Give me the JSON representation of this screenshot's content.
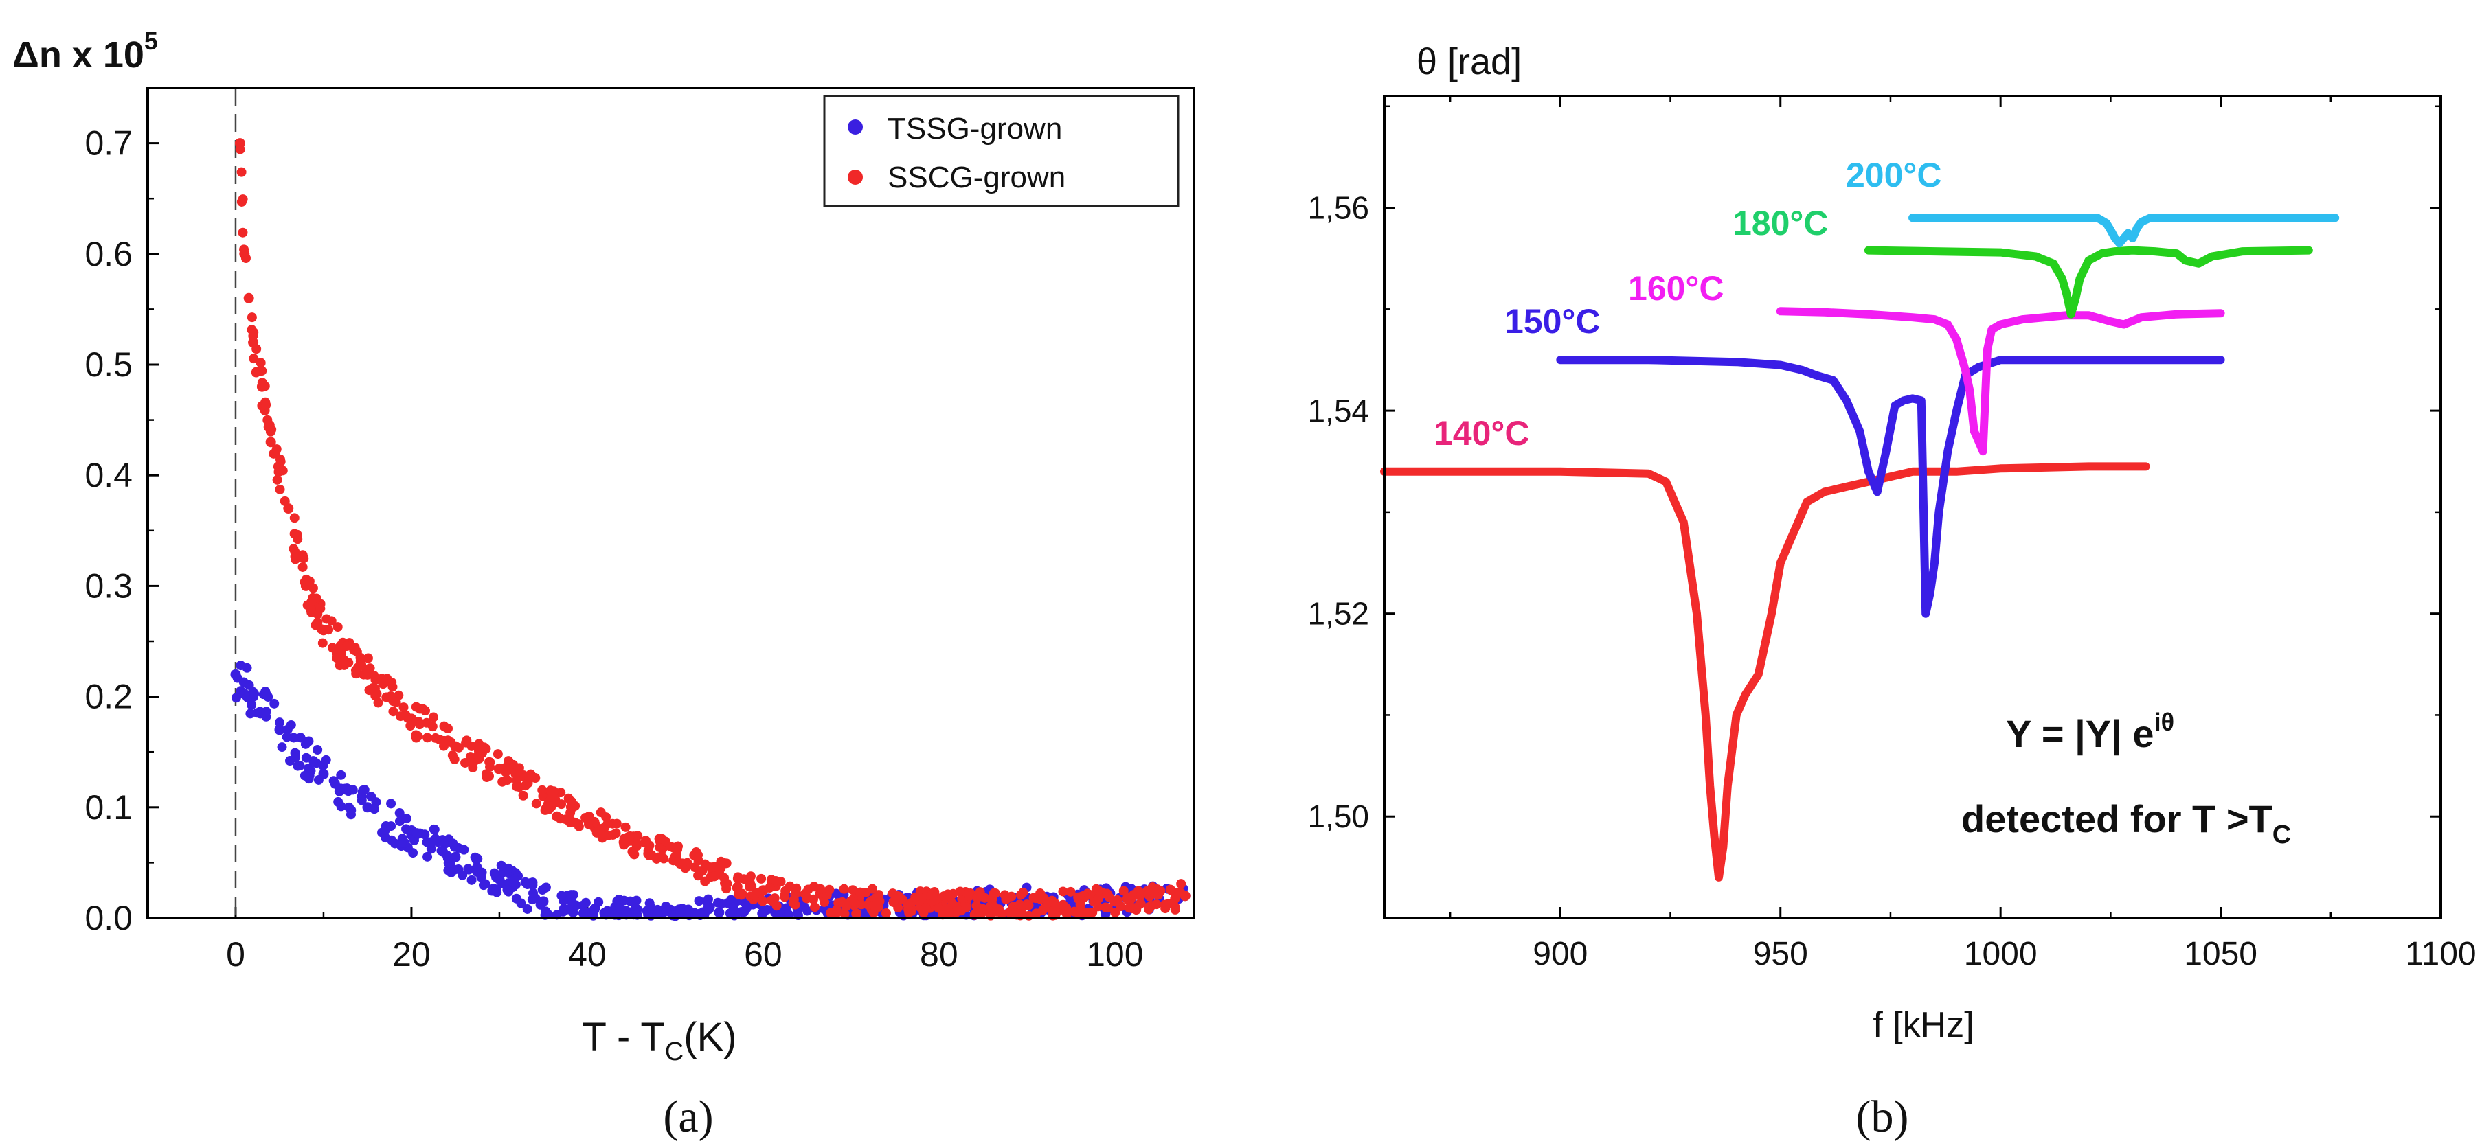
{
  "figure": {
    "panel_a_label": "(a)",
    "panel_b_label": "(b)"
  },
  "colors": {
    "tssg": "#3a1fe0",
    "sscg": "#f02828",
    "c140": "#f22b2b",
    "c150": "#3a1ee6",
    "c160": "#f21ef2",
    "c180": "#25d01c",
    "c200": "#2ebdf0",
    "label140": "#e8247a",
    "label150": "#3a1ee6",
    "label160": "#f21ef2",
    "label180": "#1fcf6a",
    "label200": "#2ebdf0"
  },
  "chart_data": [
    {
      "type": "scatter",
      "panel": "a",
      "ylabel": "Δn x 10",
      "ylabel_exp": "5",
      "xlabel_main": "T - T",
      "xlabel_sub": "C",
      "xlabel_tail": "(K)",
      "xlim": [
        -10,
        109
      ],
      "ylim": [
        0,
        0.75
      ],
      "xticks": [
        "0",
        "20",
        "40",
        "60",
        "80",
        "100"
      ],
      "yticks": [
        "0.0",
        "0.1",
        "0.2",
        "0.3",
        "0.4",
        "0.5",
        "0.6",
        "0.7"
      ],
      "dashed_line_x": 0,
      "legend": [
        "TSSG-grown",
        "SSCG-grown"
      ],
      "series": [
        {
          "name": "TSSG-grown",
          "x": [
            0,
            2,
            5,
            10,
            15,
            20,
            25,
            30,
            35,
            40,
            45,
            50,
            55,
            60,
            70,
            80,
            90,
            100,
            108
          ],
          "y": [
            0.22,
            0.2,
            0.17,
            0.13,
            0.1,
            0.075,
            0.055,
            0.035,
            0.015,
            0.005,
            0.005,
            0.002,
            0.005,
            0.005,
            0.01,
            0.01,
            0.015,
            0.015,
            0.02
          ]
        },
        {
          "name": "SSCG-grown",
          "x": [
            0.5,
            1,
            1.5,
            2,
            3,
            4,
            6,
            8,
            10,
            15,
            20,
            25,
            30,
            35,
            40,
            45,
            50,
            55,
            60,
            65,
            70,
            80,
            90,
            100,
            108
          ],
          "y": [
            0.7,
            0.6,
            0.56,
            0.52,
            0.48,
            0.43,
            0.37,
            0.3,
            0.26,
            0.22,
            0.18,
            0.155,
            0.135,
            0.11,
            0.09,
            0.07,
            0.055,
            0.04,
            0.025,
            0.018,
            0.015,
            0.012,
            0.012,
            0.015,
            0.02
          ]
        }
      ]
    },
    {
      "type": "line",
      "panel": "b",
      "ylabel": "θ [rad]",
      "xlabel": "f [kHz]",
      "xlim": [
        860,
        1100
      ],
      "ylim": [
        1.49,
        1.571
      ],
      "xticks": [
        "900",
        "950",
        "1000",
        "1050",
        "1100"
      ],
      "yticks": [
        "1,50",
        "1,52",
        "1,54",
        "1,56"
      ],
      "annotation_formula_main": "Y = |Y| e",
      "annotation_formula_sup": "iθ",
      "annotation_detect_main": "detected for T >T",
      "annotation_detect_sub": "C",
      "series": [
        {
          "name": "140°C",
          "x": [
            860,
            900,
            920,
            924,
            928,
            931,
            933,
            934,
            935,
            936,
            937,
            938,
            940,
            942,
            945,
            948,
            950,
            953,
            956,
            960,
            965,
            970,
            980,
            990,
            1000,
            1010,
            1020,
            1033
          ],
          "y": [
            1.534,
            1.534,
            1.5338,
            1.533,
            1.529,
            1.52,
            1.51,
            1.503,
            1.498,
            1.494,
            1.497,
            1.503,
            1.51,
            1.512,
            1.514,
            1.52,
            1.525,
            1.528,
            1.531,
            1.532,
            1.5325,
            1.533,
            1.534,
            1.534,
            1.5343,
            1.5344,
            1.5345,
            1.5345
          ]
        },
        {
          "name": "150°C",
          "x": [
            900,
            920,
            940,
            950,
            955,
            958,
            962,
            965,
            968,
            970,
            972,
            974,
            976,
            978,
            980,
            982,
            983,
            984,
            985,
            986,
            988,
            990,
            992,
            995,
            1000,
            1020,
            1050
          ],
          "y": [
            1.545,
            1.545,
            1.5448,
            1.5445,
            1.544,
            1.5435,
            1.543,
            1.541,
            1.538,
            1.534,
            1.532,
            1.536,
            1.5405,
            1.541,
            1.5412,
            1.541,
            1.52,
            1.522,
            1.525,
            1.53,
            1.536,
            1.54,
            1.5435,
            1.5443,
            1.545,
            1.545,
            1.545
          ]
        },
        {
          "name": "160°C",
          "x": [
            950,
            960,
            970,
            980,
            985,
            988,
            990,
            991,
            992,
            993,
            994,
            995,
            996,
            997,
            998,
            1000,
            1005,
            1010,
            1015,
            1020,
            1025,
            1028,
            1032,
            1040,
            1050
          ],
          "y": [
            1.5498,
            1.5497,
            1.5495,
            1.5492,
            1.549,
            1.5485,
            1.547,
            1.5455,
            1.544,
            1.542,
            1.538,
            1.537,
            1.536,
            1.546,
            1.548,
            1.5485,
            1.549,
            1.5492,
            1.5494,
            1.5494,
            1.5488,
            1.5485,
            1.5492,
            1.5495,
            1.5496
          ]
        },
        {
          "name": "180°C",
          "x": [
            970,
            985,
            1000,
            1008,
            1012,
            1014,
            1015,
            1016,
            1017,
            1018,
            1020,
            1023,
            1026,
            1030,
            1035,
            1040,
            1042,
            1045,
            1048,
            1055,
            1070
          ],
          "y": [
            1.5558,
            1.5557,
            1.5556,
            1.5552,
            1.5545,
            1.553,
            1.5515,
            1.5495,
            1.551,
            1.553,
            1.5548,
            1.5555,
            1.5557,
            1.5558,
            1.5557,
            1.5555,
            1.5548,
            1.5545,
            1.5552,
            1.5557,
            1.5558
          ]
        },
        {
          "name": "200°C",
          "x": [
            980,
            1000,
            1015,
            1022,
            1024,
            1025,
            1026,
            1027,
            1028,
            1029,
            1030,
            1031,
            1032,
            1034,
            1040,
            1060,
            1076
          ],
          "y": [
            1.559,
            1.559,
            1.559,
            1.559,
            1.5585,
            1.5578,
            1.557,
            1.5565,
            1.557,
            1.5575,
            1.557,
            1.558,
            1.5586,
            1.559,
            1.559,
            1.559,
            1.559
          ]
        }
      ]
    }
  ]
}
